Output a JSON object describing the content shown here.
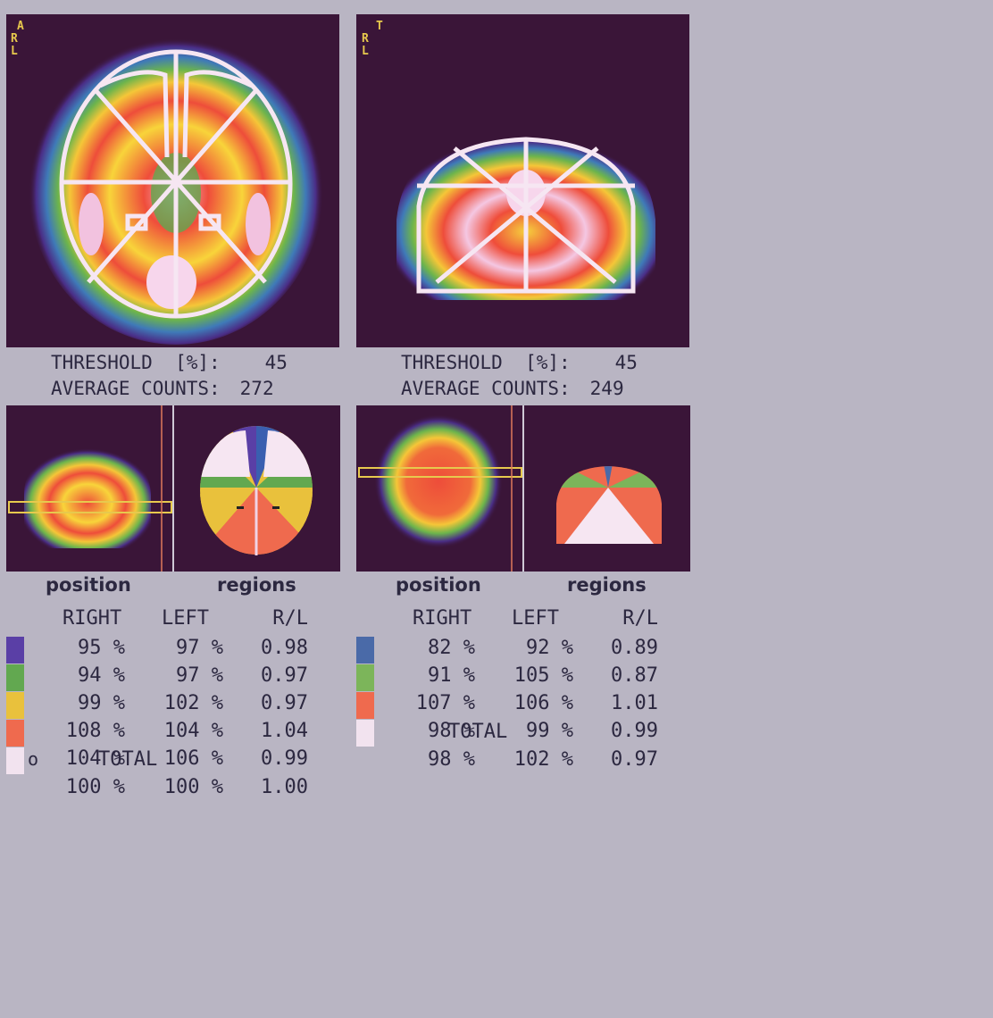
{
  "left_study": {
    "orientation": [
      "A",
      "R",
      "L"
    ],
    "threshold_label": "THRESHOLD  [%]:",
    "threshold_value": "45",
    "counts_label": "AVERAGE COUNTS:",
    "counts_value": "272",
    "position_caption": "position",
    "regions_caption": "regions",
    "headers": {
      "right": "RIGHT",
      "left": "LEFT",
      "ratio": "R/L"
    },
    "rows": [
      {
        "color": "#5a3fa6",
        "right": "95 %",
        "left": "97 %",
        "ratio": "0.98",
        "marker": ""
      },
      {
        "color": "#62a850",
        "right": "94 %",
        "left": "97 %",
        "ratio": "0.97",
        "marker": ""
      },
      {
        "color": "#e9c13c",
        "right": "99 %",
        "left": "102 %",
        "ratio": "0.97",
        "marker": ""
      },
      {
        "color": "#ef6a4e",
        "right": "108 %",
        "left": "104 %",
        "ratio": "1.04",
        "marker": ""
      },
      {
        "color": "#f2e3ef",
        "right": "104 %",
        "left": "106 %",
        "ratio": "0.99",
        "marker": "o"
      }
    ],
    "total_label": "TOTAL",
    "total": {
      "right": "100 %",
      "left": "100 %",
      "ratio": "1.00"
    }
  },
  "right_study": {
    "orientation": [
      "T",
      "R",
      "L"
    ],
    "threshold_label": "THRESHOLD  [%]:",
    "threshold_value": "45",
    "counts_label": "AVERAGE COUNTS:",
    "counts_value": "249",
    "position_caption": "position",
    "regions_caption": "regions",
    "headers": {
      "right": "RIGHT",
      "left": "LEFT",
      "ratio": "R/L"
    },
    "rows": [
      {
        "color": "#4a6aa8",
        "right": "82 %",
        "left": "92 %",
        "ratio": "0.89"
      },
      {
        "color": "#7cb55a",
        "right": "91 %",
        "left": "105 %",
        "ratio": "0.87"
      },
      {
        "color": "#ef6a4e",
        "right": "107 %",
        "left": "106 %",
        "ratio": "1.01"
      },
      {
        "color": "#f2e3ef",
        "right": "98 %",
        "left": "99 %",
        "ratio": "0.99"
      }
    ],
    "total_label": "TOTAL",
    "total": {
      "right": "98 %",
      "left": "102 %",
      "ratio": "0.97"
    }
  }
}
